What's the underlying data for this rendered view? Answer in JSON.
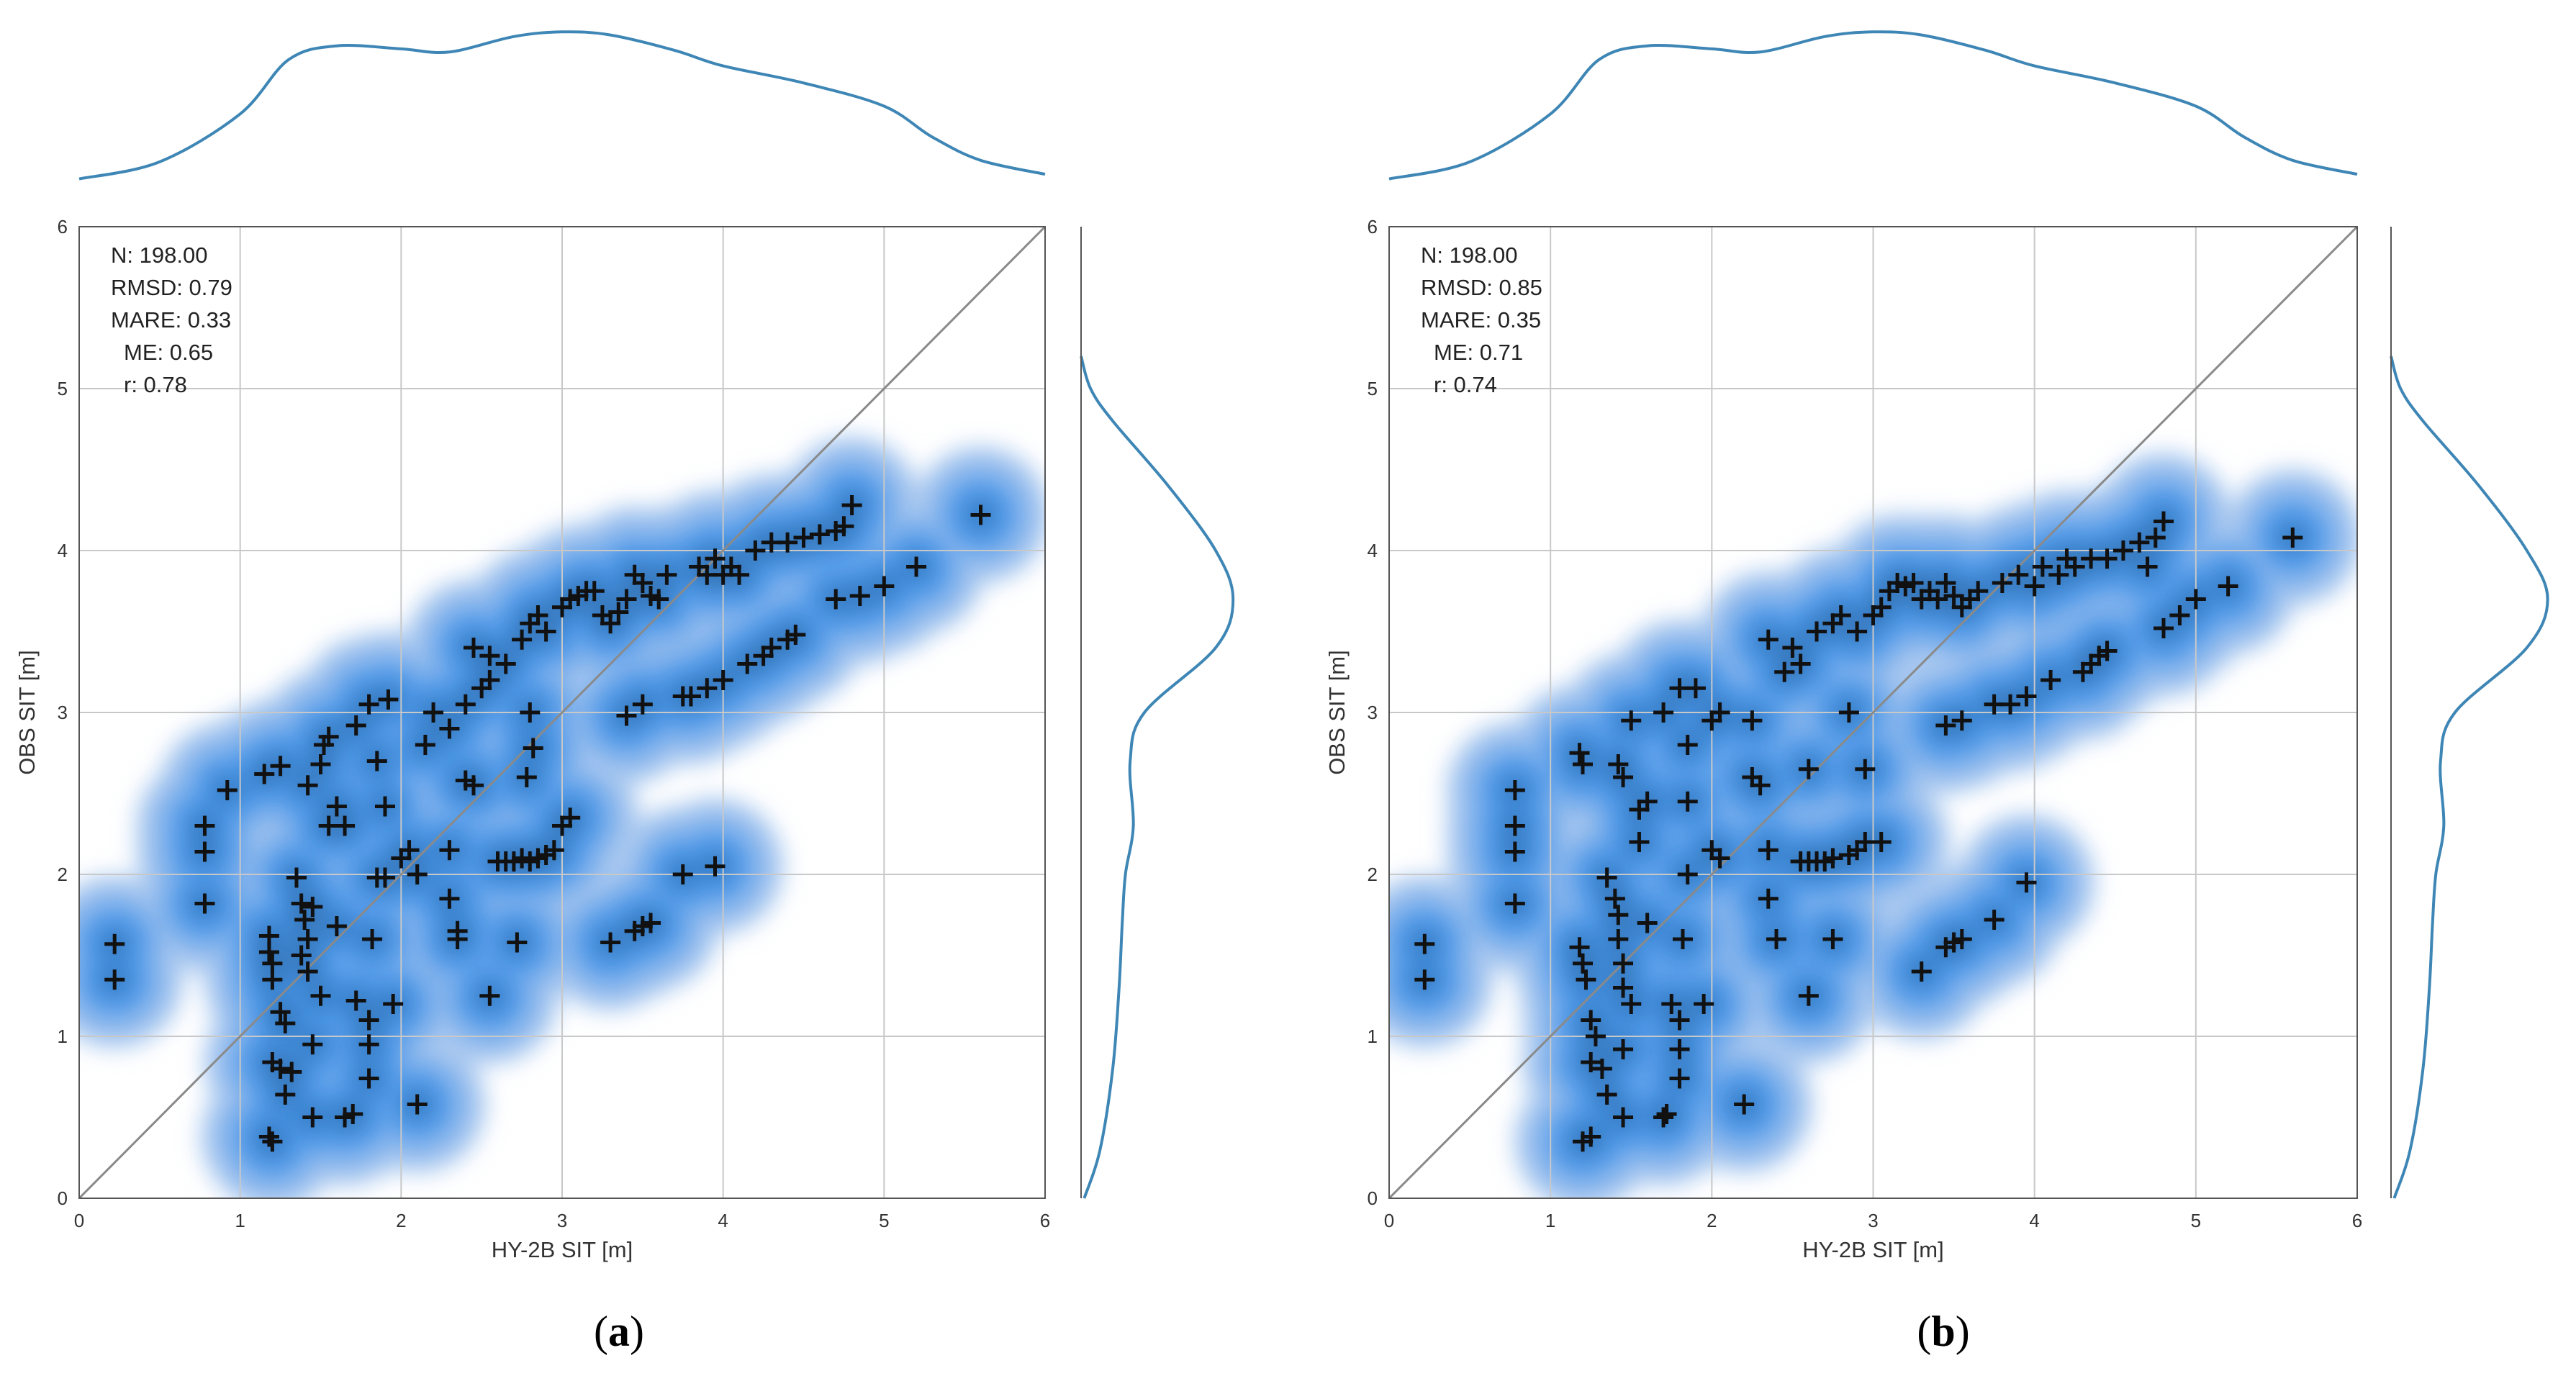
{
  "chart_data": [
    {
      "type": "scatter",
      "panel_label": "a",
      "xlabel": "HY-2B SIT [m]",
      "ylabel": "OBS SIT [m]",
      "xlim": [
        0,
        6
      ],
      "ylim": [
        0,
        6
      ],
      "xticks": [
        "0",
        "1",
        "2",
        "3",
        "4",
        "5",
        "6"
      ],
      "yticks": [
        "0",
        "1",
        "2",
        "3",
        "4",
        "5",
        "6"
      ],
      "grid": true,
      "identity_line": true,
      "stats": [
        "N: 198.00",
        "RMSD: 0.79",
        "MARE: 0.33",
        "ME: 0.65",
        "r: 0.78"
      ],
      "marker": "plus",
      "density_shading": "kde",
      "marginal_x_kde": [
        [
          0,
          0.03
        ],
        [
          0.5,
          0.14
        ],
        [
          1.0,
          0.45
        ],
        [
          1.3,
          0.8
        ],
        [
          1.6,
          0.89
        ],
        [
          2.0,
          0.87
        ],
        [
          2.3,
          0.85
        ],
        [
          2.7,
          0.95
        ],
        [
          3.0,
          0.98
        ],
        [
          3.3,
          0.96
        ],
        [
          3.7,
          0.86
        ],
        [
          4.0,
          0.76
        ],
        [
          4.5,
          0.65
        ],
        [
          5.0,
          0.5
        ],
        [
          5.3,
          0.3
        ],
        [
          5.6,
          0.15
        ],
        [
          6.0,
          0.06
        ]
      ],
      "marginal_y_kde": [
        [
          0,
          0.02
        ],
        [
          0.3,
          0.12
        ],
        [
          0.8,
          0.2
        ],
        [
          1.3,
          0.24
        ],
        [
          1.7,
          0.26
        ],
        [
          2.0,
          0.28
        ],
        [
          2.3,
          0.33
        ],
        [
          2.7,
          0.31
        ],
        [
          3.0,
          0.4
        ],
        [
          3.4,
          0.85
        ],
        [
          3.7,
          0.96
        ],
        [
          4.0,
          0.85
        ],
        [
          4.4,
          0.55
        ],
        [
          4.8,
          0.2
        ],
        [
          5.0,
          0.06
        ],
        [
          5.2,
          0.0
        ]
      ],
      "points": [
        [
          0.22,
          1.57
        ],
        [
          0.22,
          1.35
        ],
        [
          0.78,
          2.3
        ],
        [
          0.78,
          2.14
        ],
        [
          0.78,
          1.82
        ],
        [
          0.92,
          2.52
        ],
        [
          1.15,
          2.62
        ],
        [
          1.25,
          2.67
        ],
        [
          1.18,
          1.62
        ],
        [
          1.18,
          1.52
        ],
        [
          1.2,
          1.45
        ],
        [
          1.2,
          1.35
        ],
        [
          1.25,
          1.15
        ],
        [
          1.28,
          1.08
        ],
        [
          1.2,
          0.84
        ],
        [
          1.25,
          0.8
        ],
        [
          1.32,
          0.78
        ],
        [
          1.28,
          0.64
        ],
        [
          1.18,
          0.38
        ],
        [
          1.2,
          0.35
        ],
        [
          1.35,
          1.98
        ],
        [
          1.38,
          1.82
        ],
        [
          1.4,
          1.72
        ],
        [
          1.42,
          1.6
        ],
        [
          1.38,
          1.5
        ],
        [
          1.42,
          1.4
        ],
        [
          1.45,
          1.8
        ],
        [
          1.5,
          1.25
        ],
        [
          1.45,
          0.95
        ],
        [
          1.45,
          0.5
        ],
        [
          1.42,
          2.55
        ],
        [
          1.52,
          2.8
        ],
        [
          1.55,
          2.85
        ],
        [
          1.5,
          2.68
        ],
        [
          1.6,
          2.42
        ],
        [
          1.55,
          2.3
        ],
        [
          1.65,
          2.3
        ],
        [
          1.6,
          1.68
        ],
        [
          1.65,
          0.5
        ],
        [
          1.7,
          0.52
        ],
        [
          1.72,
          1.22
        ],
        [
          1.8,
          1.1
        ],
        [
          1.8,
          0.95
        ],
        [
          1.8,
          0.74
        ],
        [
          1.82,
          1.6
        ],
        [
          1.72,
          2.92
        ],
        [
          1.85,
          2.7
        ],
        [
          1.9,
          2.42
        ],
        [
          1.85,
          1.98
        ],
        [
          1.9,
          1.98
        ],
        [
          1.95,
          1.2
        ],
        [
          1.8,
          3.05
        ],
        [
          1.92,
          3.08
        ],
        [
          2.0,
          2.1
        ],
        [
          2.05,
          2.15
        ],
        [
          2.1,
          2.0
        ],
        [
          2.1,
          0.58
        ],
        [
          2.15,
          2.8
        ],
        [
          2.2,
          3.0
        ],
        [
          2.3,
          2.9
        ],
        [
          2.3,
          1.85
        ],
        [
          2.35,
          1.65
        ],
        [
          2.35,
          1.6
        ],
        [
          2.4,
          2.58
        ],
        [
          2.45,
          2.55
        ],
        [
          2.55,
          1.25
        ],
        [
          2.3,
          2.15
        ],
        [
          2.4,
          3.05
        ],
        [
          2.5,
          3.15
        ],
        [
          2.55,
          3.2
        ],
        [
          2.45,
          3.4
        ],
        [
          2.55,
          3.35
        ],
        [
          2.65,
          3.3
        ],
        [
          2.6,
          2.08
        ],
        [
          2.65,
          2.08
        ],
        [
          2.7,
          2.08
        ],
        [
          2.75,
          2.1
        ],
        [
          2.8,
          2.08
        ],
        [
          2.85,
          2.1
        ],
        [
          2.9,
          2.12
        ],
        [
          2.95,
          2.15
        ],
        [
          2.78,
          2.6
        ],
        [
          2.72,
          1.58
        ],
        [
          2.75,
          3.45
        ],
        [
          2.8,
          3.55
        ],
        [
          2.85,
          3.6
        ],
        [
          2.9,
          3.5
        ],
        [
          2.8,
          3.0
        ],
        [
          2.82,
          2.78
        ],
        [
          3.0,
          2.3
        ],
        [
          3.05,
          2.35
        ],
        [
          3.0,
          3.65
        ],
        [
          3.05,
          3.7
        ],
        [
          3.1,
          3.72
        ],
        [
          3.15,
          3.75
        ],
        [
          3.2,
          3.75
        ],
        [
          3.25,
          3.6
        ],
        [
          3.3,
          3.55
        ],
        [
          3.35,
          3.62
        ],
        [
          3.4,
          3.7
        ],
        [
          3.45,
          3.85
        ],
        [
          3.5,
          3.8
        ],
        [
          3.55,
          3.72
        ],
        [
          3.6,
          3.7
        ],
        [
          3.65,
          3.85
        ],
        [
          3.4,
          2.98
        ],
        [
          3.5,
          3.05
        ],
        [
          3.3,
          1.58
        ],
        [
          3.45,
          1.65
        ],
        [
          3.5,
          1.68
        ],
        [
          3.55,
          1.7
        ],
        [
          3.75,
          2.0
        ],
        [
          3.95,
          2.05
        ],
        [
          3.75,
          3.1
        ],
        [
          3.8,
          3.1
        ],
        [
          3.9,
          3.15
        ],
        [
          4.0,
          3.2
        ],
        [
          3.85,
          3.9
        ],
        [
          3.9,
          3.85
        ],
        [
          3.95,
          3.95
        ],
        [
          4.0,
          3.85
        ],
        [
          4.05,
          3.9
        ],
        [
          4.1,
          3.85
        ],
        [
          4.15,
          3.3
        ],
        [
          4.25,
          3.35
        ],
        [
          4.3,
          3.4
        ],
        [
          4.4,
          3.45
        ],
        [
          4.45,
          3.48
        ],
        [
          4.2,
          4.0
        ],
        [
          4.3,
          4.05
        ],
        [
          4.4,
          4.05
        ],
        [
          4.5,
          4.08
        ],
        [
          4.6,
          4.1
        ],
        [
          4.7,
          4.12
        ],
        [
          4.75,
          4.15
        ],
        [
          4.8,
          4.28
        ],
        [
          4.7,
          3.7
        ],
        [
          4.85,
          3.72
        ],
        [
          5.0,
          3.78
        ],
        [
          5.2,
          3.9
        ],
        [
          5.6,
          4.22
        ]
      ]
    },
    {
      "type": "scatter",
      "panel_label": "b",
      "xlabel": "HY-2B SIT [m]",
      "ylabel": "OBS SIT [m]",
      "xlim": [
        0,
        6
      ],
      "ylim": [
        0,
        6
      ],
      "xticks": [
        "0",
        "1",
        "2",
        "3",
        "4",
        "5",
        "6"
      ],
      "yticks": [
        "0",
        "1",
        "2",
        "3",
        "4",
        "5",
        "6"
      ],
      "grid": true,
      "identity_line": true,
      "stats": [
        "N: 198.00",
        "RMSD: 0.85",
        "MARE: 0.35",
        "ME: 0.71",
        "r: 0.74"
      ],
      "marker": "plus",
      "density_shading": "kde",
      "marginal_x_kde": [
        [
          0,
          0.03
        ],
        [
          0.5,
          0.14
        ],
        [
          1.0,
          0.45
        ],
        [
          1.3,
          0.8
        ],
        [
          1.6,
          0.89
        ],
        [
          2.0,
          0.87
        ],
        [
          2.3,
          0.85
        ],
        [
          2.7,
          0.95
        ],
        [
          3.0,
          0.98
        ],
        [
          3.3,
          0.96
        ],
        [
          3.7,
          0.86
        ],
        [
          4.0,
          0.76
        ],
        [
          4.5,
          0.65
        ],
        [
          5.0,
          0.5
        ],
        [
          5.3,
          0.3
        ],
        [
          5.6,
          0.15
        ],
        [
          6.0,
          0.06
        ]
      ],
      "marginal_y_kde": [
        [
          0,
          0.02
        ],
        [
          0.3,
          0.12
        ],
        [
          0.8,
          0.2
        ],
        [
          1.3,
          0.24
        ],
        [
          1.7,
          0.26
        ],
        [
          2.0,
          0.28
        ],
        [
          2.3,
          0.33
        ],
        [
          2.7,
          0.31
        ],
        [
          3.0,
          0.4
        ],
        [
          3.4,
          0.85
        ],
        [
          3.7,
          0.98
        ],
        [
          4.0,
          0.85
        ],
        [
          4.4,
          0.55
        ],
        [
          4.8,
          0.2
        ],
        [
          5.0,
          0.06
        ],
        [
          5.2,
          0.0
        ]
      ],
      "points": [
        [
          0.22,
          1.57
        ],
        [
          0.22,
          1.35
        ],
        [
          0.78,
          2.52
        ],
        [
          0.78,
          2.3
        ],
        [
          0.78,
          2.14
        ],
        [
          0.78,
          1.82
        ],
        [
          1.18,
          2.75
        ],
        [
          1.2,
          2.68
        ],
        [
          1.18,
          1.55
        ],
        [
          1.2,
          1.45
        ],
        [
          1.22,
          1.35
        ],
        [
          1.25,
          1.1
        ],
        [
          1.28,
          1.0
        ],
        [
          1.25,
          0.84
        ],
        [
          1.32,
          0.8
        ],
        [
          1.35,
          0.64
        ],
        [
          1.2,
          0.35
        ],
        [
          1.25,
          0.38
        ],
        [
          1.35,
          1.98
        ],
        [
          1.4,
          1.85
        ],
        [
          1.42,
          1.75
        ],
        [
          1.42,
          1.6
        ],
        [
          1.45,
          1.45
        ],
        [
          1.45,
          1.3
        ],
        [
          1.5,
          1.2
        ],
        [
          1.45,
          0.92
        ],
        [
          1.45,
          0.5
        ],
        [
          1.42,
          2.68
        ],
        [
          1.45,
          2.6
        ],
        [
          1.5,
          2.95
        ],
        [
          1.55,
          2.4
        ],
        [
          1.55,
          2.2
        ],
        [
          1.6,
          2.45
        ],
        [
          1.6,
          1.7
        ],
        [
          1.7,
          0.5
        ],
        [
          1.72,
          0.52
        ],
        [
          1.75,
          1.2
        ],
        [
          1.8,
          1.1
        ],
        [
          1.8,
          0.92
        ],
        [
          1.8,
          0.74
        ],
        [
          1.82,
          1.6
        ],
        [
          1.7,
          3.0
        ],
        [
          1.8,
          3.15
        ],
        [
          1.9,
          3.15
        ],
        [
          1.85,
          2.8
        ],
        [
          1.85,
          2.45
        ],
        [
          1.85,
          2.0
        ],
        [
          1.95,
          1.2
        ],
        [
          2.0,
          2.15
        ],
        [
          2.05,
          2.1
        ],
        [
          2.0,
          2.95
        ],
        [
          2.05,
          3.0
        ],
        [
          2.2,
          0.58
        ],
        [
          2.25,
          2.6
        ],
        [
          2.3,
          2.55
        ],
        [
          2.35,
          1.85
        ],
        [
          2.4,
          1.6
        ],
        [
          2.35,
          2.15
        ],
        [
          2.25,
          2.95
        ],
        [
          2.35,
          3.45
        ],
        [
          2.45,
          3.25
        ],
        [
          2.5,
          3.4
        ],
        [
          2.55,
          3.3
        ],
        [
          2.6,
          1.25
        ],
        [
          2.55,
          2.08
        ],
        [
          2.6,
          2.08
        ],
        [
          2.65,
          2.08
        ],
        [
          2.7,
          2.08
        ],
        [
          2.75,
          2.1
        ],
        [
          2.85,
          2.12
        ],
        [
          2.9,
          2.15
        ],
        [
          2.95,
          2.2
        ],
        [
          3.05,
          2.2
        ],
        [
          2.6,
          2.65
        ],
        [
          2.75,
          1.6
        ],
        [
          2.65,
          3.5
        ],
        [
          2.75,
          3.55
        ],
        [
          2.8,
          3.6
        ],
        [
          2.9,
          3.5
        ],
        [
          2.85,
          3.0
        ],
        [
          2.95,
          2.65
        ],
        [
          3.0,
          3.6
        ],
        [
          3.05,
          3.65
        ],
        [
          3.1,
          3.75
        ],
        [
          3.15,
          3.8
        ],
        [
          3.2,
          3.78
        ],
        [
          3.25,
          3.8
        ],
        [
          3.3,
          3.7
        ],
        [
          3.35,
          3.75
        ],
        [
          3.4,
          3.7
        ],
        [
          3.45,
          3.8
        ],
        [
          3.5,
          3.72
        ],
        [
          3.55,
          3.65
        ],
        [
          3.6,
          3.7
        ],
        [
          3.65,
          3.75
        ],
        [
          3.45,
          2.92
        ],
        [
          3.55,
          2.95
        ],
        [
          3.3,
          1.4
        ],
        [
          3.45,
          1.55
        ],
        [
          3.5,
          1.58
        ],
        [
          3.55,
          1.6
        ],
        [
          3.75,
          1.72
        ],
        [
          3.95,
          1.95
        ],
        [
          3.75,
          3.05
        ],
        [
          3.85,
          3.05
        ],
        [
          3.95,
          3.1
        ],
        [
          4.1,
          3.2
        ],
        [
          3.8,
          3.8
        ],
        [
          3.9,
          3.85
        ],
        [
          4.0,
          3.78
        ],
        [
          4.05,
          3.9
        ],
        [
          4.15,
          3.85
        ],
        [
          4.2,
          3.95
        ],
        [
          4.3,
          3.25
        ],
        [
          4.35,
          3.3
        ],
        [
          4.4,
          3.35
        ],
        [
          4.45,
          3.38
        ],
        [
          4.25,
          3.9
        ],
        [
          4.35,
          3.95
        ],
        [
          4.45,
          3.95
        ],
        [
          4.55,
          4.0
        ],
        [
          4.65,
          4.05
        ],
        [
          4.75,
          4.08
        ],
        [
          4.8,
          4.18
        ],
        [
          4.7,
          3.9
        ],
        [
          4.8,
          3.52
        ],
        [
          4.9,
          3.6
        ],
        [
          5.0,
          3.7
        ],
        [
          5.2,
          3.78
        ],
        [
          5.6,
          4.08
        ]
      ]
    }
  ]
}
